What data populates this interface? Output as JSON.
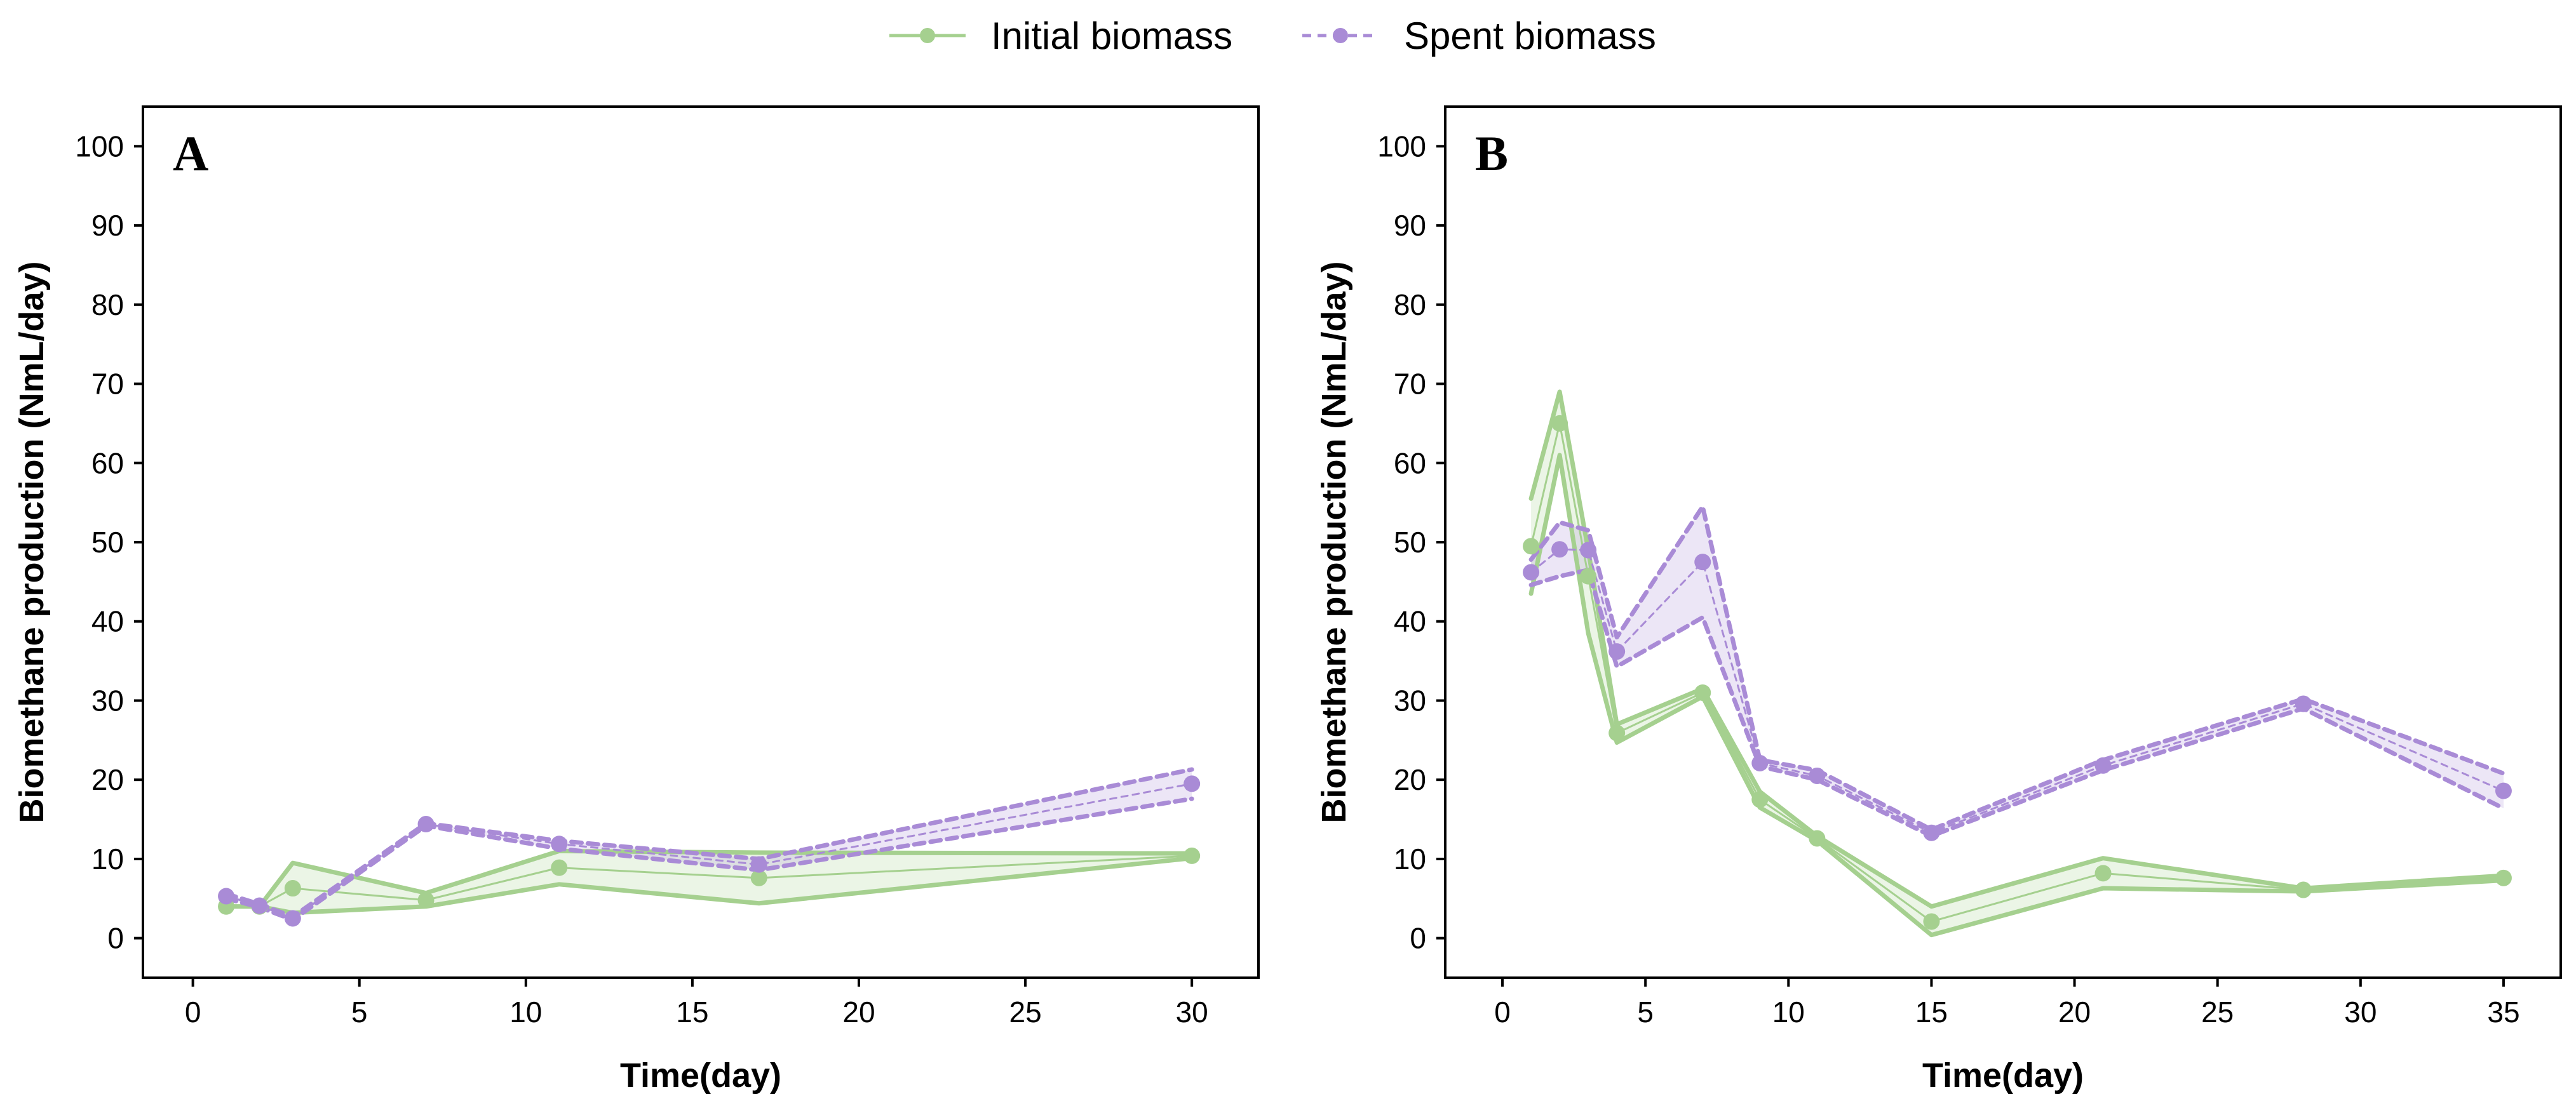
{
  "legend": [
    {
      "name": "Initial biomass",
      "color": "#a5d08f",
      "marker": "circle",
      "line": "solid"
    },
    {
      "name": "Spent biomass",
      "color": "#a98bd6",
      "marker": "circle",
      "line": "dashed"
    }
  ],
  "chart_data": [
    {
      "type": "line",
      "panel_label": "A",
      "xlabel": "Time(day)",
      "ylabel": "Biomethane production (NmL/day)",
      "xlim": [
        -1.5,
        32
      ],
      "ylim": [
        -5,
        105
      ],
      "xticks": [
        0,
        5,
        10,
        15,
        20,
        25,
        30
      ],
      "yticks": [
        0,
        10,
        20,
        30,
        40,
        50,
        60,
        70,
        80,
        90,
        100
      ],
      "grid": false,
      "series": [
        {
          "name": "Initial biomass",
          "color": "#a5d08f",
          "line": "solid",
          "x": [
            1,
            2,
            3,
            7,
            11,
            17,
            30
          ],
          "mean": [
            4.0,
            4.0,
            6.3,
            4.8,
            8.9,
            7.6,
            10.4
          ],
          "upper": [
            4.0,
            4.0,
            9.5,
            5.7,
            11.0,
            10.8,
            10.7
          ],
          "lower": [
            4.0,
            4.0,
            3.2,
            4.0,
            6.8,
            4.4,
            10.1
          ]
        },
        {
          "name": "Spent biomass",
          "color": "#a98bd6",
          "line": "dashed",
          "x": [
            1,
            2,
            3,
            7,
            11,
            17,
            30
          ],
          "mean": [
            5.3,
            4.1,
            2.5,
            14.4,
            11.9,
            9.3,
            19.5
          ],
          "upper": [
            5.6,
            4.3,
            2.7,
            14.5,
            12.3,
            10.0,
            21.3
          ],
          "lower": [
            5.0,
            3.9,
            2.3,
            14.2,
            11.3,
            8.6,
            17.6
          ]
        }
      ]
    },
    {
      "type": "line",
      "panel_label": "B",
      "xlabel": "Time(day)",
      "ylabel": "Biomethane production (NmL/day)",
      "xlim": [
        -2,
        37
      ],
      "ylim": [
        -5,
        105
      ],
      "xticks": [
        0,
        5,
        10,
        15,
        20,
        25,
        30,
        35
      ],
      "yticks": [
        0,
        10,
        20,
        30,
        40,
        50,
        60,
        70,
        80,
        90,
        100
      ],
      "grid": false,
      "series": [
        {
          "name": "Initial biomass",
          "color": "#a5d08f",
          "line": "solid",
          "x": [
            1,
            2,
            3,
            4,
            7,
            9,
            11,
            15,
            21,
            28,
            35
          ],
          "mean": [
            49.5,
            65.0,
            45.7,
            25.9,
            31.0,
            17.5,
            12.6,
            2.1,
            8.2,
            6.1,
            7.6
          ],
          "upper": [
            55.5,
            69.0,
            49.0,
            27.0,
            31.5,
            18.5,
            12.9,
            4.0,
            10.1,
            6.3,
            7.9
          ],
          "lower": [
            43.5,
            61.0,
            38.5,
            24.7,
            30.5,
            16.5,
            12.3,
            0.4,
            6.3,
            5.9,
            7.3
          ]
        },
        {
          "name": "Spent biomass",
          "color": "#a98bd6",
          "line": "dashed",
          "x": [
            1,
            2,
            3,
            4,
            7,
            9,
            11,
            15,
            21,
            28,
            35
          ],
          "mean": [
            46.2,
            49.1,
            49.0,
            36.2,
            47.5,
            22.1,
            20.5,
            13.3,
            21.8,
            29.6,
            18.6
          ],
          "upper": [
            47.8,
            52.5,
            51.5,
            38.0,
            54.5,
            22.5,
            21.2,
            13.7,
            22.5,
            30.2,
            20.8
          ],
          "lower": [
            44.6,
            45.7,
            46.5,
            34.3,
            40.5,
            21.7,
            20.0,
            12.9,
            21.2,
            29.0,
            16.4
          ]
        }
      ]
    }
  ]
}
